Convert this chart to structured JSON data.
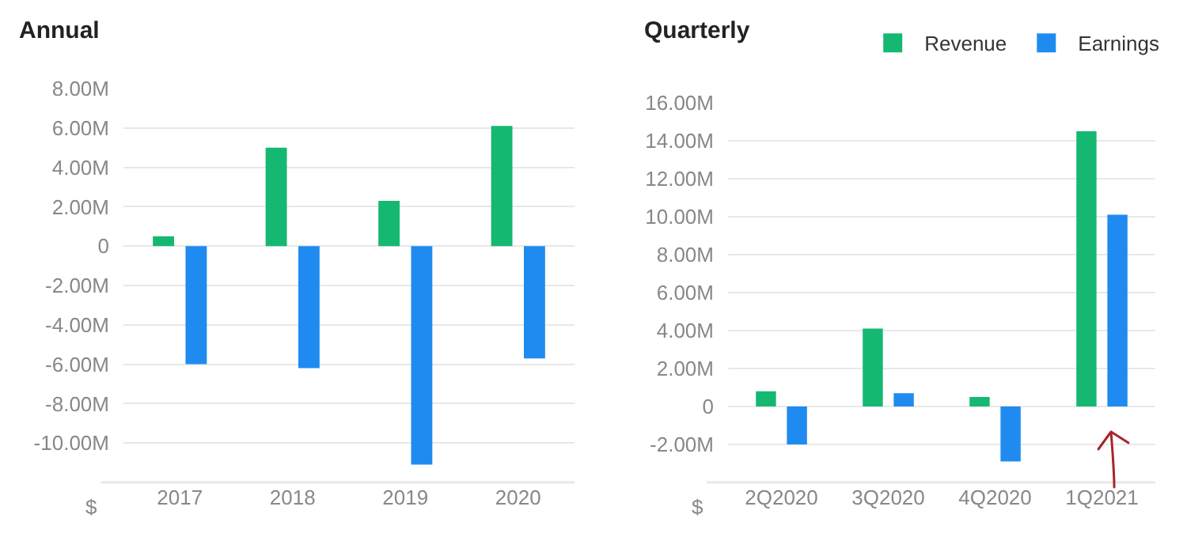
{
  "chart_data": [
    {
      "type": "bar",
      "title": "Annual",
      "ylabel": "$",
      "categories": [
        "2017",
        "2018",
        "2019",
        "2020"
      ],
      "series": [
        {
          "color": "#15b871",
          "values": [
            0.5,
            5.0,
            2.3,
            6.1
          ]
        },
        {
          "color": "#1f8bf0",
          "values": [
            -6.0,
            -6.2,
            -11.1,
            -5.7
          ]
        }
      ],
      "ylim": [
        -12,
        8
      ],
      "yticks": [
        {
          "value": -10,
          "label": "-10.00M"
        },
        {
          "value": -8,
          "label": "-8.00M"
        },
        {
          "value": -6,
          "label": "-6.00M"
        },
        {
          "value": -4,
          "label": "-4.00M"
        },
        {
          "value": -2,
          "label": "-2.00M"
        },
        0,
        {
          "value": 2,
          "label": "2.00M"
        },
        {
          "value": 4,
          "label": "4.00M"
        },
        {
          "value": 6,
          "label": "6.00M"
        },
        {
          "value": 8,
          "label": "8.00M"
        }
      ],
      "grid": "y"
    },
    {
      "type": "bar",
      "title": "Quarterly",
      "ylabel": "$",
      "categories": [
        "2Q2020",
        "3Q2020",
        "4Q2020",
        "1Q2021"
      ],
      "series": [
        {
          "name": "Revenue",
          "color": "#15b871",
          "values": [
            0.8,
            4.1,
            0.5,
            14.5
          ]
        },
        {
          "name": "Earnings",
          "color": "#1f8bf0",
          "values": [
            -2.0,
            0.7,
            -2.9,
            10.1
          ]
        }
      ],
      "ylim": [
        -4,
        16
      ],
      "yticks": [
        {
          "value": -2,
          "label": "-2.00M"
        },
        0,
        {
          "value": 2,
          "label": "2.00M"
        },
        {
          "value": 4,
          "label": "4.00M"
        },
        {
          "value": 6,
          "label": "6.00M"
        },
        {
          "value": 8,
          "label": "8.00M"
        },
        {
          "value": 10,
          "label": "10.00M"
        },
        {
          "value": 12,
          "label": "12.00M"
        },
        {
          "value": 14,
          "label": "14.00M"
        },
        {
          "value": 16,
          "label": "16.00M"
        }
      ],
      "grid": "y",
      "legend": "top right"
    }
  ]
}
